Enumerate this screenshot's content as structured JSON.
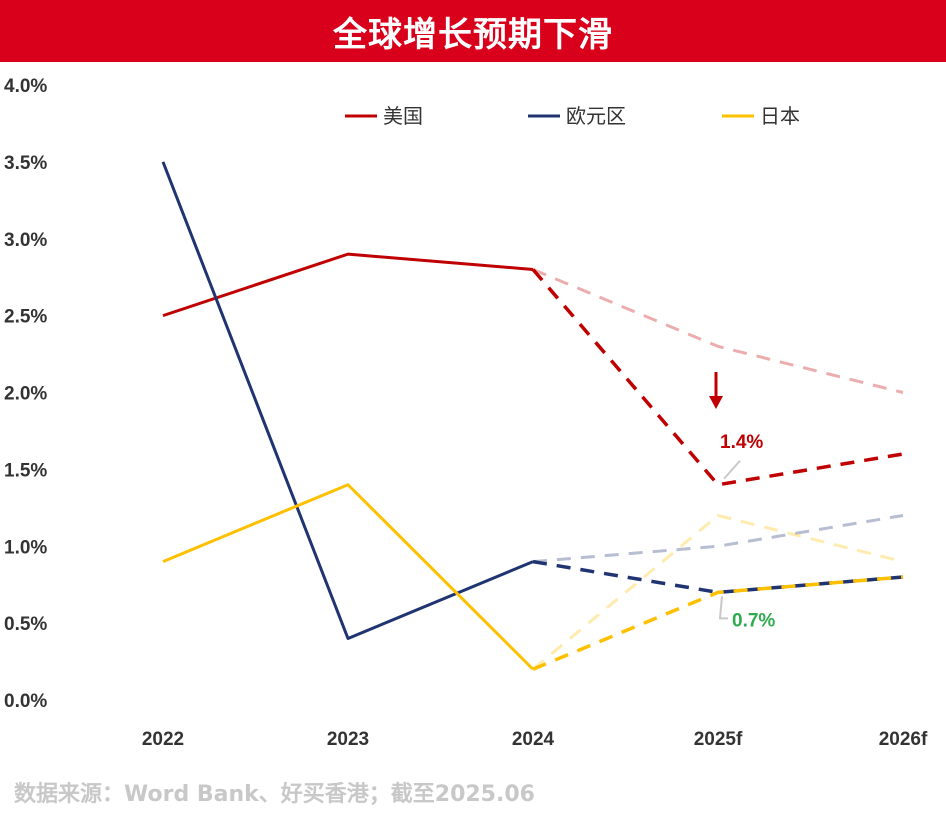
{
  "title": "全球增长预期下滑",
  "source": "数据来源：Word Bank、好买香港；截至2025.06",
  "colors": {
    "title_bg": "#d9001b",
    "us": "#c00000",
    "eu": "#1f3470",
    "jp": "#ffc000",
    "highlight_green": "#2eaa4f"
  },
  "chart_data": {
    "type": "line",
    "categories": [
      "2022",
      "2023",
      "2024",
      "2025f",
      "2026f"
    ],
    "ylim": [
      0,
      4.0
    ],
    "y_ticks": [
      "0.0%",
      "0.5%",
      "1.0%",
      "1.5%",
      "2.0%",
      "2.5%",
      "3.0%",
      "3.5%",
      "4.0%"
    ],
    "grid": false,
    "legend_position": "top",
    "series": [
      {
        "name": "美国",
        "color_key": "us",
        "actual": [
          2.5,
          2.9,
          2.8,
          null,
          null
        ],
        "forecast_previous": [
          null,
          null,
          2.8,
          2.3,
          2.0
        ],
        "forecast_current": [
          null,
          null,
          2.8,
          1.4,
          1.6
        ]
      },
      {
        "name": "欧元区",
        "color_key": "eu",
        "actual": [
          3.5,
          0.4,
          0.9,
          null,
          null
        ],
        "forecast_previous": [
          null,
          null,
          0.9,
          1.0,
          1.2
        ],
        "forecast_current": [
          null,
          null,
          0.9,
          0.7,
          0.8
        ]
      },
      {
        "name": "日本",
        "color_key": "jp",
        "actual": [
          0.9,
          1.4,
          0.2,
          null,
          null
        ],
        "forecast_previous": [
          null,
          null,
          0.2,
          1.2,
          0.9
        ],
        "forecast_current": [
          null,
          null,
          0.2,
          0.7,
          0.8
        ]
      }
    ],
    "annotations": [
      {
        "text": "1.4%",
        "series": "美国",
        "category": "2025f",
        "value": 1.4,
        "color_key": "us"
      },
      {
        "text": "0.7%",
        "series": "欧元区",
        "category": "2025f",
        "value": 0.7,
        "color_key": "highlight_green"
      }
    ]
  }
}
